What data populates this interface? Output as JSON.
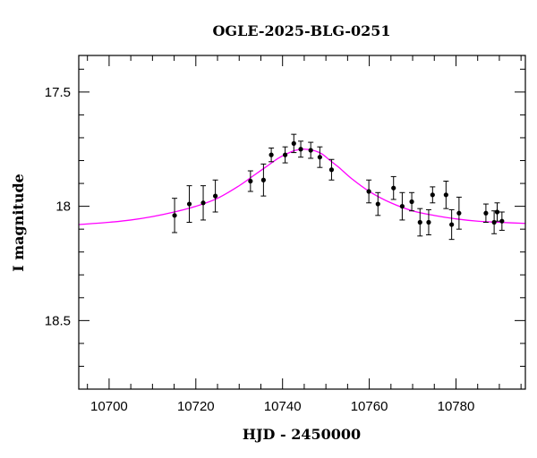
{
  "chart_data": {
    "type": "scatter",
    "title": "OGLE-2025-BLG-0251",
    "xlabel": "HJD - 2450000",
    "ylabel": "I magnitude",
    "xlim": [
      10693,
      10796
    ],
    "ylim": [
      18.8,
      17.34
    ],
    "y_inverted": true,
    "grid": false,
    "x_ticks": [
      10700,
      10720,
      10740,
      10760,
      10780
    ],
    "x_tick_labels": [
      "10700",
      "10720",
      "10740",
      "10760",
      "10780"
    ],
    "y_ticks": [
      17.5,
      18.0,
      18.5
    ],
    "y_tick_labels": [
      "17.5",
      "18",
      "18.5"
    ],
    "point_color": "#000000",
    "model_color": "#ff00ff",
    "model": {
      "type": "point-lens microlensing fit",
      "x": [
        10693,
        10700,
        10705,
        10710,
        10715,
        10720,
        10725,
        10730,
        10733,
        10736,
        10739,
        10741,
        10743,
        10745,
        10747,
        10749,
        10751,
        10753,
        10756,
        10760,
        10765,
        10770,
        10775,
        10780,
        10785,
        10790,
        10796
      ],
      "y": [
        18.08,
        18.07,
        18.06,
        18.045,
        18.025,
        18.0,
        17.965,
        17.91,
        17.87,
        17.83,
        17.79,
        17.77,
        17.755,
        17.75,
        17.755,
        17.77,
        17.8,
        17.83,
        17.88,
        17.935,
        17.985,
        18.02,
        18.04,
        18.055,
        18.065,
        18.07,
        18.075
      ]
    },
    "series": [
      {
        "x": [
          10715.1,
          10718.5,
          10721.7,
          10724.5,
          10732.6,
          10735.6,
          10737.4,
          10740.6,
          10742.6,
          10744.2,
          10746.5,
          10748.6,
          10751.3,
          10759.9,
          10762.0,
          10765.6,
          10767.6,
          10769.8,
          10771.7,
          10773.7,
          10774.6,
          10777.7,
          10779.0,
          10780.7,
          10786.9,
          10788.8,
          10789.5,
          10790.6
        ],
        "y": [
          18.04,
          17.99,
          17.985,
          17.955,
          17.89,
          17.885,
          17.775,
          17.775,
          17.725,
          17.75,
          17.755,
          17.785,
          17.84,
          17.935,
          17.99,
          17.92,
          18.0,
          17.98,
          18.07,
          18.07,
          17.95,
          17.95,
          18.08,
          18.03,
          18.03,
          18.07,
          18.025,
          18.065
        ],
        "err": [
          0.075,
          0.08,
          0.075,
          0.07,
          0.045,
          0.07,
          0.03,
          0.035,
          0.04,
          0.035,
          0.035,
          0.045,
          0.045,
          0.05,
          0.05,
          0.05,
          0.06,
          0.04,
          0.06,
          0.055,
          0.035,
          0.06,
          0.065,
          0.07,
          0.04,
          0.05,
          0.04,
          0.04
        ]
      }
    ]
  }
}
